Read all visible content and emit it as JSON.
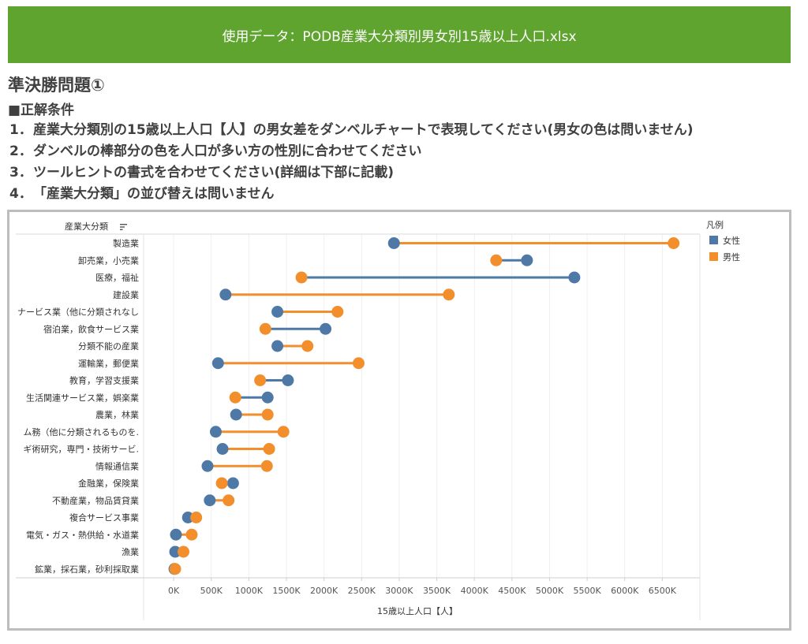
{
  "banner": {
    "text": "使用データ：PODB産業大分類別男女別15歳以上人口.xlsx"
  },
  "task": {
    "title": "準決勝問題①",
    "conditions_title": "■正解条件",
    "conditions": [
      {
        "num": "1．",
        "text": "産業大分類別の15歳以上人口【人】の男女差をダンベルチャートで表現してください(男女の色は問いません)"
      },
      {
        "num": "2．",
        "text": "ダンベルの棒部分の色を人口が多い方の性別に合わせてください"
      },
      {
        "num": "3．",
        "text": "ツールヒントの書式を合わせてください(詳細は下部に記載)"
      },
      {
        "num": "4．",
        "text": "「産業大分類」の並び替えは問いません"
      }
    ]
  },
  "chart_data": {
    "type": "dumbbell",
    "row_header": "産業大分類",
    "xlabel": "15歳以上人口【人】",
    "xlim": [
      -400000,
      7000000
    ],
    "xticks": [
      0,
      500000,
      1000000,
      1500000,
      2000000,
      2500000,
      3000000,
      3500000,
      4000000,
      4500000,
      5000000,
      5500000,
      6000000,
      6500000
    ],
    "xtick_labels": [
      "0K",
      "500K",
      "1000K",
      "1500K",
      "2000K",
      "2500K",
      "3000K",
      "3500K",
      "4000K",
      "4500K",
      "5000K",
      "5500K",
      "6000K",
      "6500K"
    ],
    "legend_title": "凡例",
    "legend_position": "top-right",
    "grid": true,
    "colors": {
      "female": "#4e79a7",
      "male": "#f28e2b"
    },
    "series": [
      {
        "name": "女性",
        "key": "female"
      },
      {
        "name": "男性",
        "key": "male"
      }
    ],
    "categories": [
      "製造業",
      "卸売業，小売業",
      "医療，福祉",
      "建設業",
      "サービス業（他に分類されないもの）",
      "宿泊業，飲食サービス業",
      "分類不能の産業",
      "運輸業，郵便業",
      "教育，学習支援業",
      "生活関連サービス業，娯楽業",
      "農業，林業",
      "公務（他に分類されるものを除く）",
      "学術研究，専門・技術サービス業",
      "情報通信業",
      "金融業，保険業",
      "不動産業，物品賃貸業",
      "複合サービス事業",
      "電気・ガス・熱供給・水道業",
      "漁業",
      "鉱業，採石業，砂利採取業"
    ],
    "category_labels": [
      "製造業",
      "卸売業，小売業",
      "医療，福祉",
      "建設業",
      "ナービス業（他に分類されなし",
      "宿泊業，飲食サービス業",
      "分類不能の産業",
      "運輸業，郵便業",
      "教育，学習支援業",
      "生活関連サービス業，娯楽業",
      "農業，林業",
      "ム務（他に分類されるものを.",
      "ギ術研究，専門・技術サービ.",
      "情報通信業",
      "金融業，保険業",
      "不動産業，物品賃貸業",
      "複合サービス事業",
      "電気・ガス・熱供給・水道業",
      "漁業",
      "鉱業，採石業，砂利採取業"
    ],
    "female": [
      2930000,
      4700000,
      5330000,
      690000,
      1380000,
      2020000,
      1380000,
      590000,
      1520000,
      1250000,
      830000,
      560000,
      650000,
      450000,
      790000,
      480000,
      190000,
      30000,
      20000,
      10000
    ],
    "male": [
      6650000,
      4290000,
      1700000,
      3660000,
      2180000,
      1220000,
      1780000,
      2460000,
      1150000,
      820000,
      1250000,
      1460000,
      1270000,
      1240000,
      640000,
      730000,
      300000,
      240000,
      130000,
      20000
    ]
  }
}
